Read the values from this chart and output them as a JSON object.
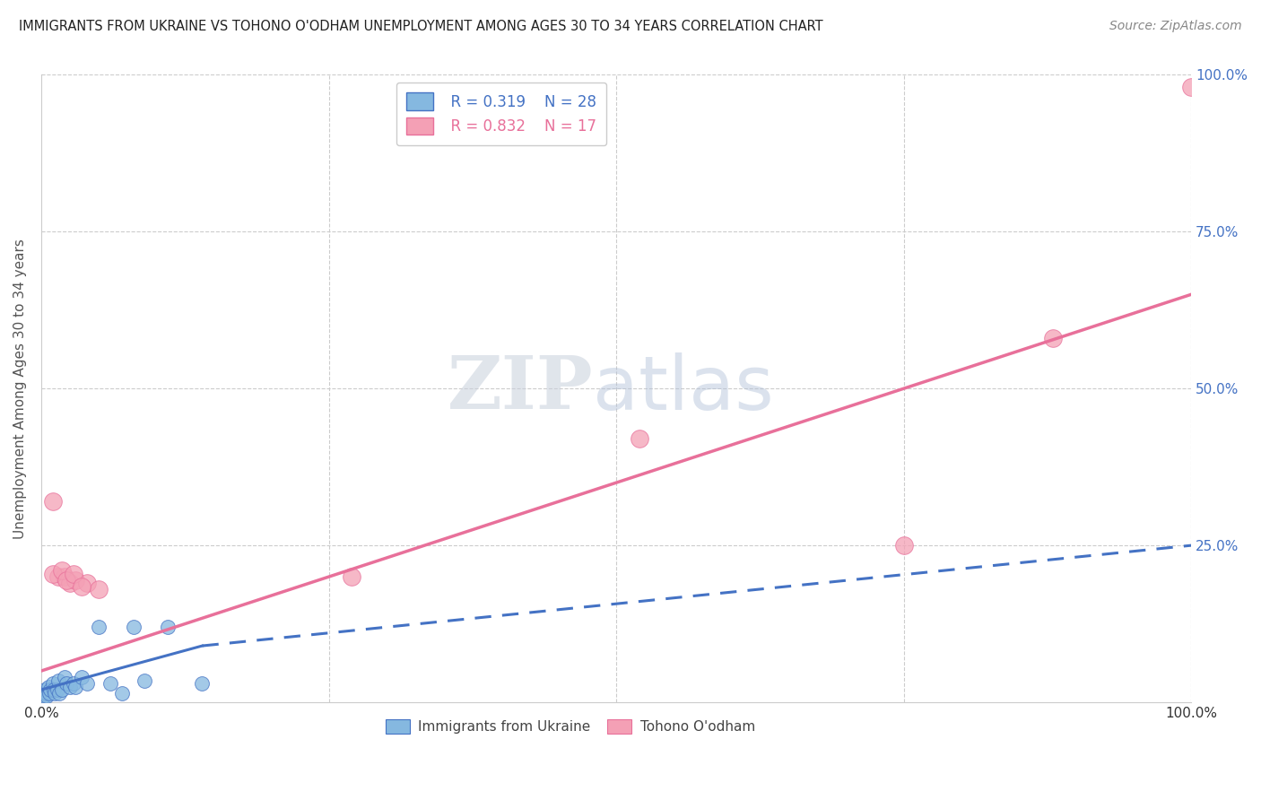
{
  "title": "IMMIGRANTS FROM UKRAINE VS TOHONO O'ODHAM UNEMPLOYMENT AMONG AGES 30 TO 34 YEARS CORRELATION CHART",
  "source": "Source: ZipAtlas.com",
  "ylabel": "Unemployment Among Ages 30 to 34 years",
  "xlim": [
    0,
    100
  ],
  "ylim": [
    0,
    100
  ],
  "ukraine_color": "#85b8e0",
  "tohono_color": "#f4a0b5",
  "ukraine_line_color": "#4472c4",
  "tohono_line_color": "#e8709a",
  "legend_R_ukraine": "0.319",
  "legend_N_ukraine": "28",
  "legend_R_tohono": "0.832",
  "legend_N_tohono": "17",
  "ukraine_scatter_x": [
    0.2,
    0.3,
    0.4,
    0.5,
    0.6,
    0.7,
    0.8,
    1.0,
    1.1,
    1.2,
    1.4,
    1.5,
    1.6,
    1.8,
    2.0,
    2.2,
    2.5,
    2.8,
    3.0,
    3.5,
    4.0,
    5.0,
    6.0,
    7.0,
    8.0,
    9.0,
    11.0,
    14.0
  ],
  "ukraine_scatter_y": [
    1.0,
    2.0,
    1.5,
    1.0,
    2.5,
    1.5,
    2.0,
    3.0,
    2.0,
    1.5,
    2.0,
    3.5,
    1.5,
    2.0,
    4.0,
    3.0,
    2.5,
    3.0,
    2.5,
    4.0,
    3.0,
    12.0,
    3.0,
    1.5,
    12.0,
    3.5,
    12.0,
    3.0
  ],
  "tohono_scatter_x": [
    1.0,
    1.5,
    2.0,
    2.5,
    3.0,
    4.0,
    5.0,
    27.0,
    52.0,
    75.0,
    88.0,
    100.0,
    1.0,
    1.8,
    2.2,
    2.8,
    3.5
  ],
  "tohono_scatter_y": [
    32.0,
    20.0,
    20.0,
    19.0,
    19.5,
    19.0,
    18.0,
    20.0,
    42.0,
    25.0,
    58.0,
    98.0,
    20.5,
    21.0,
    19.5,
    20.5,
    18.5
  ],
  "ukraine_line_x0": 0.0,
  "ukraine_line_y0": 2.0,
  "ukraine_line_x1": 14.0,
  "ukraine_line_y1": 9.0,
  "ukraine_dash_x0": 14.0,
  "ukraine_dash_y0": 9.0,
  "ukraine_dash_x1": 100.0,
  "ukraine_dash_y1": 25.0,
  "tohono_line_x0": 0.0,
  "tohono_line_y0": 5.0,
  "tohono_line_x1": 100.0,
  "tohono_line_y1": 65.0,
  "background_color": "#ffffff",
  "grid_color": "#cccccc"
}
